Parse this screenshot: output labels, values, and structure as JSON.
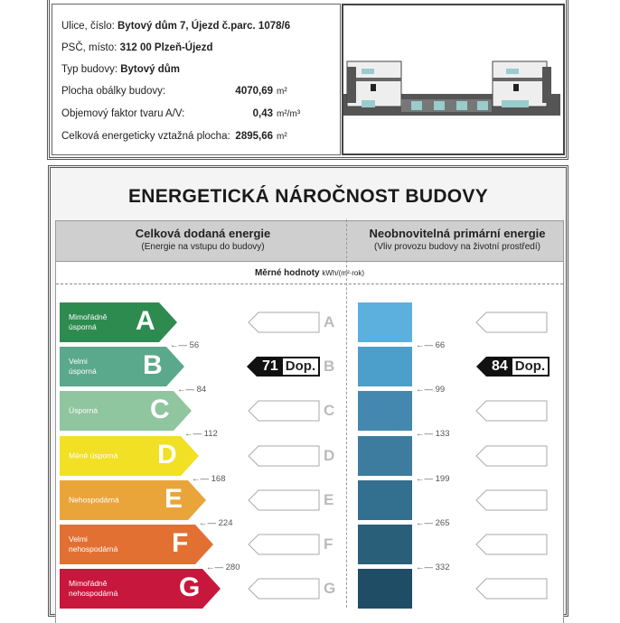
{
  "building": {
    "street_label": "Ulice, číslo:",
    "street_value": "Bytový dům 7, Újezd č.parc. 1078/6",
    "zip_label": "PSČ, místo:",
    "zip_value": "312 00 Plzeň-Újezd",
    "type_label": "Typ budovy:",
    "type_value": "Bytový dům",
    "envelope_label": "Plocha obálky budovy:",
    "envelope_value": "4070,69",
    "envelope_unit": "m²",
    "factor_label": "Objemový faktor tvaru A/V:",
    "factor_value": "0,43",
    "factor_unit": "m²/m³",
    "area_label": "Celková energeticky vztažná plocha:",
    "area_value": "2895,66",
    "area_unit": "m²"
  },
  "title": "ENERGETICKÁ NÁROČNOST BUDOVY",
  "left_header": {
    "title": "Celková dodaná energie",
    "subtitle": "(Energie na vstupu do budovy)"
  },
  "right_header": {
    "title": "Neobnovitelná primární energie",
    "subtitle": "(Vliv provozu budovy na životní prostředí)"
  },
  "units_label": "Měrné hodnoty",
  "units": "kWh/(m²·rok)",
  "classes": [
    {
      "letter": "A",
      "label1": "Mimořádně",
      "label2": "úsporná",
      "color": "#2e8b50"
    },
    {
      "letter": "B",
      "label1": "Velmi",
      "label2": "úsporná",
      "color": "#5aa98c"
    },
    {
      "letter": "C",
      "label1": "Úsporná",
      "label2": "",
      "color": "#8fc59f"
    },
    {
      "letter": "D",
      "label1": "Méně úsporná",
      "label2": "",
      "color": "#f1e024"
    },
    {
      "letter": "E",
      "label1": "Nehospodárná",
      "label2": "",
      "color": "#e9a53a"
    },
    {
      "letter": "F",
      "label1": "Velmi",
      "label2": "nehospodárná",
      "color": "#e27033"
    },
    {
      "letter": "G",
      "label1": "Mimořádně",
      "label2": "nehospodárná",
      "color": "#c8173c"
    }
  ],
  "left_thresholds": [
    "56",
    "84",
    "112",
    "168",
    "224",
    "280"
  ],
  "right_thresholds": [
    "66",
    "99",
    "133",
    "199",
    "265",
    "332"
  ],
  "blue_colors": [
    "#5cb0de",
    "#4d9fcb",
    "#4488b0",
    "#3d7c9f",
    "#336f8e",
    "#2a5f7a",
    "#1f4d66"
  ],
  "left_rating": {
    "value": "71",
    "label": "Dop.",
    "class": "B"
  },
  "right_rating": {
    "value": "84",
    "label": "Dop.",
    "class": "B"
  }
}
